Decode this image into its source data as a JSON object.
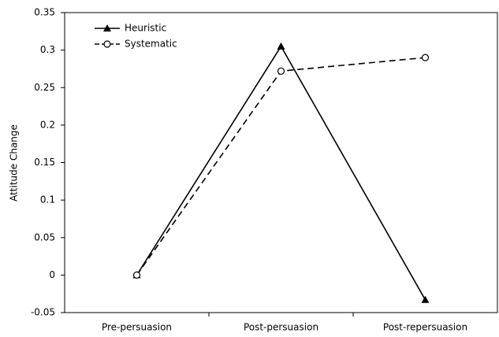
{
  "chart_data": {
    "type": "line",
    "y_label": "Attitude Change",
    "categories": [
      "Pre-persuasion",
      "Post-persuasion",
      "Post-repersuasion"
    ],
    "series": [
      {
        "name": "Heuristic",
        "color": "#000000",
        "dash": "solid",
        "marker": "triangle",
        "values": [
          0,
          0.305,
          -0.033
        ]
      },
      {
        "name": "Systematic",
        "color": "#000000",
        "dash": "dashed",
        "marker": "circle",
        "values": [
          0,
          0.272,
          0.29
        ]
      }
    ],
    "ylim": [
      -0.05,
      0.35
    ],
    "yticks": [
      -0.05,
      0,
      0.05,
      0.1,
      0.15,
      0.2,
      0.25,
      0.3,
      0.35
    ],
    "legend": "upper left"
  }
}
